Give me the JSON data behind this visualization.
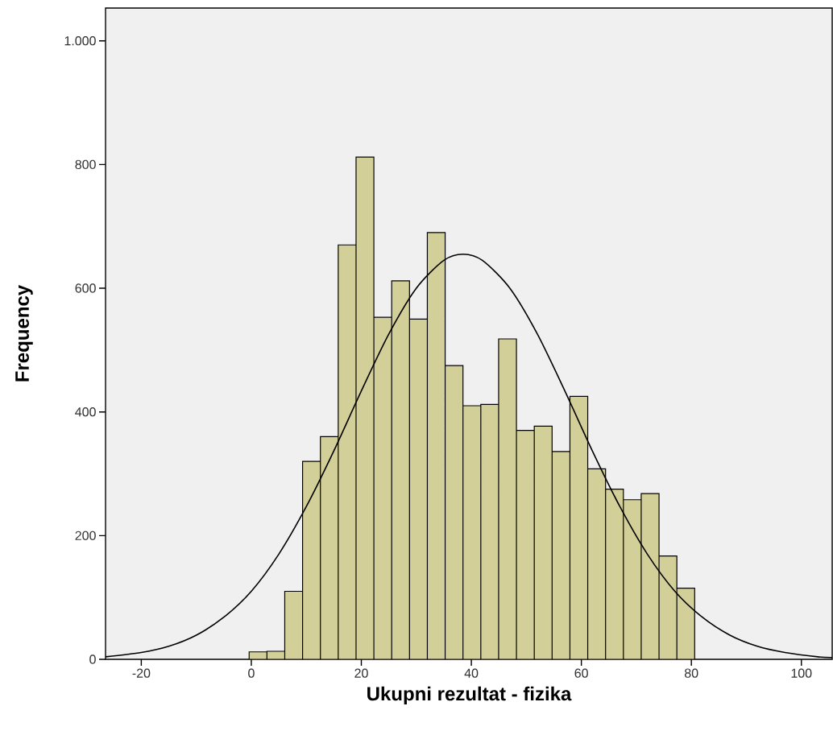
{
  "chart_data": {
    "type": "histogram",
    "xlabel": "Ukupni rezultat - fizika",
    "ylabel": "Frequency",
    "bins": [
      -0.4,
      2.84,
      6.08,
      9.32,
      12.56,
      15.8,
      19.04,
      22.28,
      25.52,
      28.76,
      32.0,
      35.24,
      38.48,
      41.72,
      44.96,
      48.2,
      51.44,
      54.68,
      57.92,
      61.16,
      64.4,
      67.64,
      70.88,
      74.12,
      77.36,
      80.6
    ],
    "values": [
      12,
      13,
      110,
      320,
      360,
      670,
      812,
      553,
      612,
      550,
      690,
      475,
      410,
      412,
      518,
      370,
      377,
      336,
      425,
      308,
      275,
      258,
      268,
      167,
      115
    ],
    "color": "#d3cf98",
    "series": [
      {
        "type": "line",
        "color": "#000000",
        "x": [
          -26.5,
          -20,
          -15,
          -10,
          -5,
          0,
          5,
          10,
          15,
          20,
          25,
          30,
          35,
          38.5,
          42,
          47,
          52,
          57,
          62,
          67,
          72,
          77,
          82,
          87,
          92,
          97,
          103,
          105.6
        ],
        "values": [
          4,
          11,
          21,
          39,
          68,
          110,
          170,
          247,
          337,
          434,
          526,
          600,
          645,
          655,
          645,
          600,
          526,
          434,
          337,
          247,
          170,
          110,
          68,
          39,
          21,
          11,
          4,
          3
        ]
      }
    ],
    "xlim": [
      -26.5,
      105.6
    ],
    "ylim": [
      0,
      1053
    ],
    "xticks": [
      -20,
      0,
      20,
      40,
      60,
      80,
      100
    ],
    "yticks": [
      0,
      200,
      400,
      600,
      800,
      {
        "value": 1000,
        "label": "1.000"
      }
    ]
  }
}
